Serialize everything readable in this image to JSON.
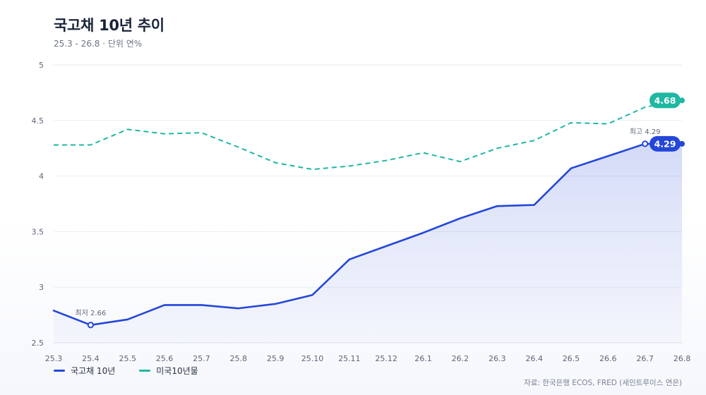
{
  "header": {
    "title": "국고채 10년 추이",
    "subtitle": "25.3 - 26.8 · 단위 연%"
  },
  "source": "자료: 한국은행 ECOS, FRED (세인트루이스 연은)",
  "colors": {
    "primary": "#2447d8",
    "secondary": "#1fb8a3",
    "grid": "#e9edf3",
    "axis_text": "#5e6678"
  },
  "chart_data": {
    "type": "line",
    "x": [
      "25.3",
      "25.4",
      "25.5",
      "25.6",
      "25.7",
      "25.8",
      "25.9",
      "25.10",
      "25.11",
      "25.12",
      "26.1",
      "26.2",
      "26.3",
      "26.4",
      "26.5",
      "26.6",
      "26.7",
      "26.8"
    ],
    "ylim": [
      2.5,
      5
    ],
    "yticks": [
      "2.5",
      "3",
      "3.5",
      "4",
      "4.5",
      "5"
    ],
    "grid": true,
    "legend_position": "bottom-left",
    "series": [
      {
        "name": "국고채 10년",
        "style": "solid-area",
        "color": "#2447d8",
        "values": [
          2.79,
          2.66,
          2.71,
          2.84,
          2.84,
          2.81,
          2.85,
          2.93,
          3.25,
          3.37,
          3.49,
          3.62,
          3.73,
          3.74,
          4.07,
          4.18,
          4.29,
          4.29
        ],
        "end_label": "4.29"
      },
      {
        "name": "미국10년물",
        "style": "dashed",
        "color": "#1fb8a3",
        "values": [
          4.28,
          4.28,
          4.42,
          4.38,
          4.39,
          4.26,
          4.12,
          4.06,
          4.09,
          4.14,
          4.21,
          4.13,
          4.25,
          4.32,
          4.48,
          4.47,
          4.62,
          4.68
        ],
        "end_label": "4.68"
      }
    ],
    "annotations": [
      {
        "text": "최저 2.66",
        "series": 0,
        "index": 1
      },
      {
        "text": "최고 4.29",
        "series": 0,
        "index": 16
      }
    ]
  }
}
